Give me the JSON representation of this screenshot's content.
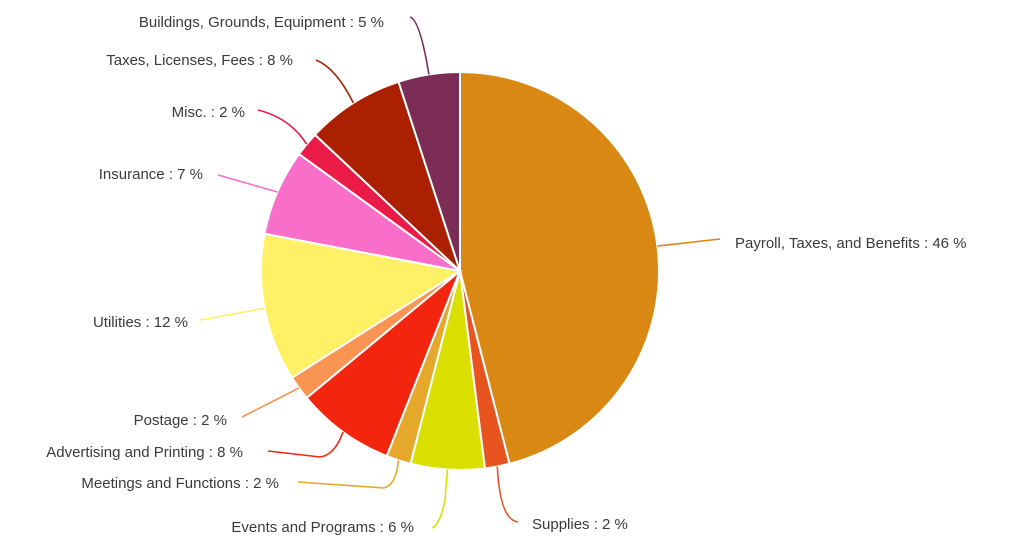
{
  "chart_data": {
    "type": "pie",
    "title": "",
    "legend": "none",
    "label_format": "{name} : {value} %",
    "slices": [
      {
        "name": "Payroll, Taxes, and Benefits",
        "value": 46,
        "color": "#d98813"
      },
      {
        "name": "Supplies",
        "value": 2,
        "color": "#e8541f"
      },
      {
        "name": "Events and Programs",
        "value": 6,
        "color": "#dadf00"
      },
      {
        "name": "Meetings and Functions",
        "value": 2,
        "color": "#e5a82a"
      },
      {
        "name": "Advertising and Printing",
        "value": 8,
        "color": "#f4250f"
      },
      {
        "name": "Postage",
        "value": 2,
        "color": "#fa9453"
      },
      {
        "name": "Utilities",
        "value": 12,
        "color": "#fff066"
      },
      {
        "name": "Insurance",
        "value": 7,
        "color": "#f96ec8"
      },
      {
        "name": "Misc.",
        "value": 2,
        "color": "#eb1b47"
      },
      {
        "name": "Taxes, Licenses, Fees",
        "value": 8,
        "color": "#ab2100"
      },
      {
        "name": "Buildings, Grounds, Equipment",
        "value": 5,
        "color": "#7b2d55"
      }
    ]
  }
}
